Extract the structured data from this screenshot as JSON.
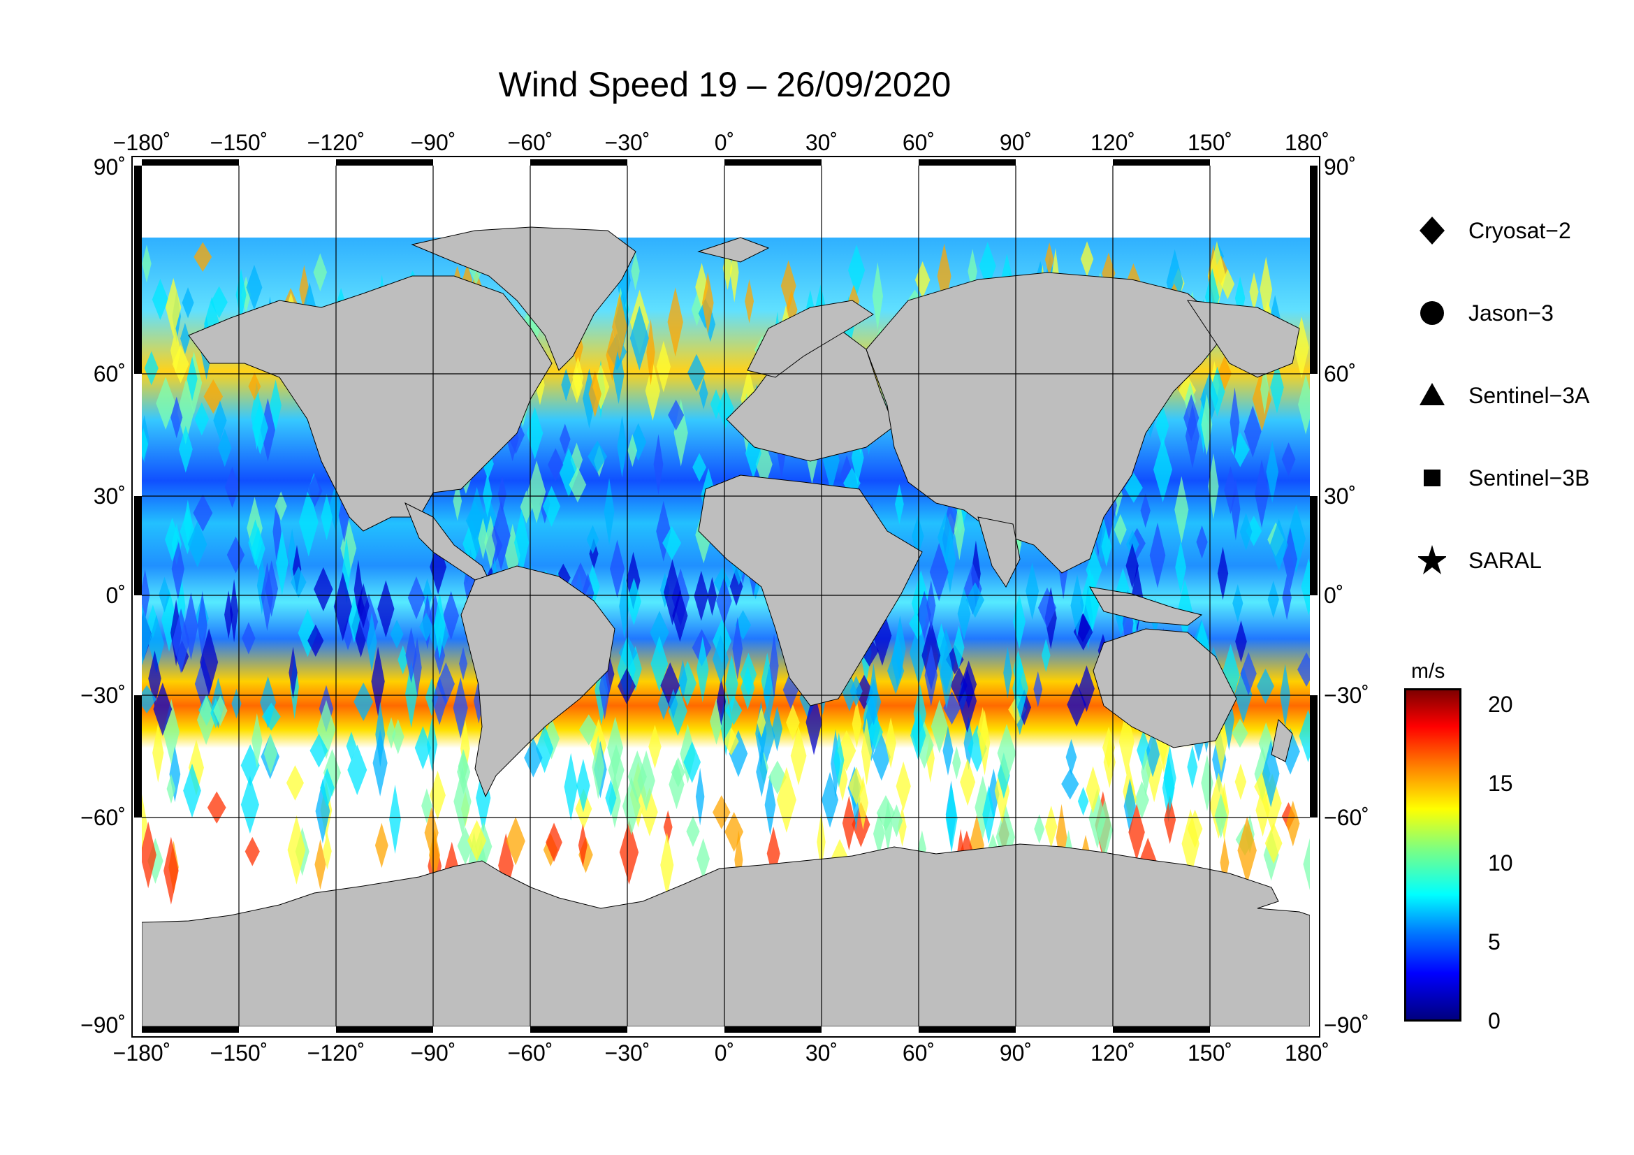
{
  "title": "Wind Speed 19 – 26/09/2020",
  "lon_ticks": [
    "−180˚",
    "−150˚",
    "−120˚",
    "−90˚",
    "−60˚",
    "−30˚",
    "0˚",
    "30˚",
    "60˚",
    "90˚",
    "120˚",
    "150˚",
    "180˚"
  ],
  "lat_ticks": [
    "90˚",
    "60˚",
    "30˚",
    "0˚",
    "−30˚",
    "−60˚",
    "−90˚"
  ],
  "legend": [
    {
      "symbol": "diamond",
      "label": "Cryosat−2"
    },
    {
      "symbol": "circle",
      "label": "Jason−3"
    },
    {
      "symbol": "triangle",
      "label": "Sentinel−3A"
    },
    {
      "symbol": "square",
      "label": "Sentinel−3B"
    },
    {
      "symbol": "star",
      "label": "SARAL"
    }
  ],
  "colorbar": {
    "unit": "m/s",
    "ticks": [
      "0",
      "5",
      "10",
      "15",
      "20"
    ],
    "range": [
      0,
      20
    ]
  },
  "colors": {
    "land": "#bebebe",
    "ice": "#ffffff",
    "low": "#0000cd",
    "mid": "#00e5ff",
    "high": "#ff2000"
  }
}
